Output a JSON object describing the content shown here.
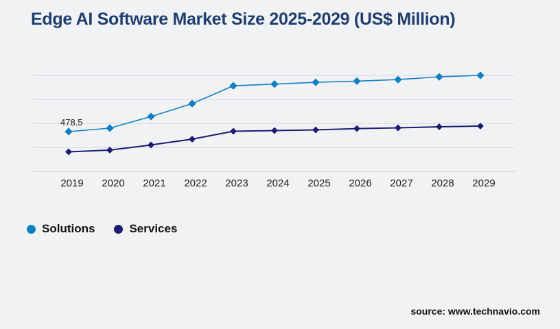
{
  "title": "Edge AI Software Market Size 2025-2029 (US$ Million)",
  "colors": {
    "title": "#1e3e6f",
    "background": "#f1f2f4",
    "gridline": "#d7d7db",
    "axis_line": "#c9c9ce",
    "tick_text": "#1b1b1b",
    "solutions": "#0f7fc4",
    "services": "#1b1c72"
  },
  "chart_data": {
    "type": "line",
    "title": "Edge AI Software Market Size 2025-2029 (US$ Million)",
    "x": [
      "2019",
      "2020",
      "2021",
      "2022",
      "2023",
      "2024",
      "2025",
      "2026",
      "2027",
      "2028",
      "2029"
    ],
    "series": [
      {
        "name": "Solutions",
        "color": "#0f7fc4",
        "marker": "diamond",
        "values": [
          478.5,
          520,
          660,
          815,
          1030,
          1050,
          1072,
          1086,
          1105,
          1138,
          1155
        ]
      },
      {
        "name": "Services",
        "color": "#1b1c72",
        "marker": "diamond",
        "values": [
          235,
          256,
          318,
          388,
          483,
          491,
          499,
          515,
          524,
          536,
          545
        ]
      }
    ],
    "data_labels": [
      {
        "series": "Solutions",
        "x": "2019",
        "text": "478.5"
      }
    ],
    "xlabel": "",
    "ylabel": "",
    "ylim": [
      0,
      1250
    ],
    "grid": "horizontal",
    "legend_position": "bottom-left"
  },
  "legend": {
    "items": [
      {
        "label": "Solutions",
        "color": "#0f7fc4"
      },
      {
        "label": "Services",
        "color": "#1b1c72"
      }
    ]
  },
  "footer": {
    "source_label": "source: www.technavio.com"
  }
}
